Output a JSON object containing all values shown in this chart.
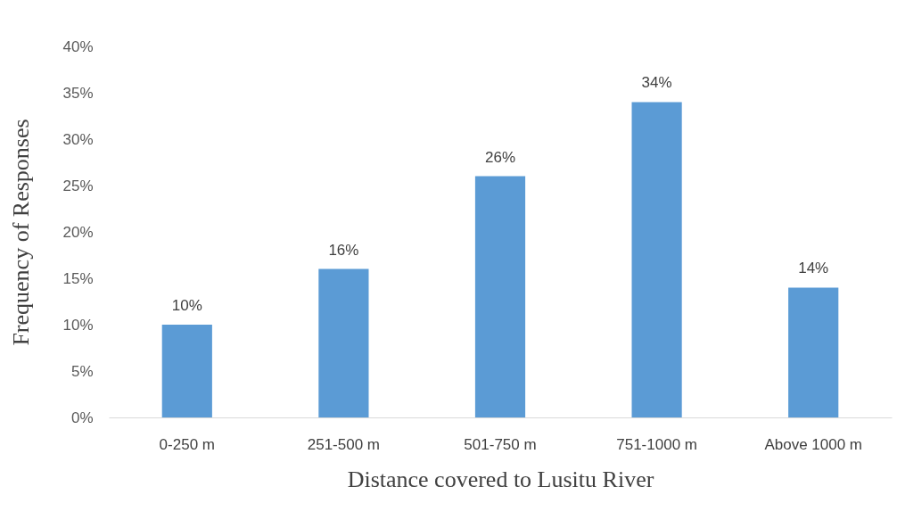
{
  "chart_data": {
    "type": "bar",
    "xlabel": "Distance covered to Lusitu River",
    "ylabel": "Frequency of Responses",
    "categories": [
      "0-250 m",
      "251-500 m",
      "501-750 m",
      "751-1000 m",
      "Above 1000 m"
    ],
    "values": [
      10,
      16,
      26,
      34,
      14
    ],
    "value_labels": [
      "10%",
      "16%",
      "26%",
      "34%",
      "14%"
    ],
    "color": "#5b9bd5",
    "ylim": [
      0,
      40
    ],
    "yticks": [
      {
        "value": 0,
        "label": "0%"
      },
      {
        "value": 5,
        "label": "5%"
      },
      {
        "value": 10,
        "label": "10%"
      },
      {
        "value": 15,
        "label": "15%"
      },
      {
        "value": 20,
        "label": "20%"
      },
      {
        "value": 25,
        "label": "25%"
      },
      {
        "value": 30,
        "label": "30%"
      },
      {
        "value": 35,
        "label": "35%"
      },
      {
        "value": 40,
        "label": "40%"
      }
    ],
    "grid": false
  }
}
